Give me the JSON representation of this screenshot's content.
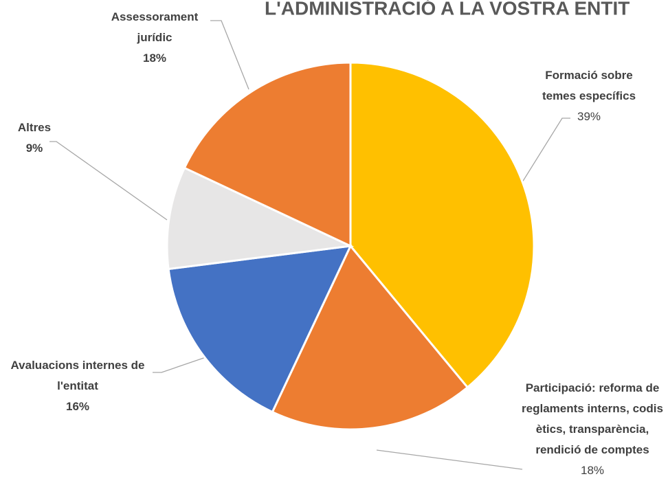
{
  "chart_data": {
    "type": "pie",
    "title": "L'ADMINISTRACIÓ A LA VOSTRA ENTIT",
    "categories": [
      "Formació sobre temes específics",
      "Participació: reforma de reglaments interns, codis ètics, transparència, rendició de comptes",
      "Avaluacions internes de l'entitat",
      "Altres",
      "Assessorament jurídic"
    ],
    "values": [
      39,
      18,
      16,
      9,
      18
    ],
    "value_labels": [
      "39%",
      "18%",
      "16%",
      "9%",
      "18%"
    ],
    "colors": [
      "#FFC000",
      "#ED7D31",
      "#4472C4",
      "#E7E6E6",
      "#ED7D31"
    ]
  }
}
